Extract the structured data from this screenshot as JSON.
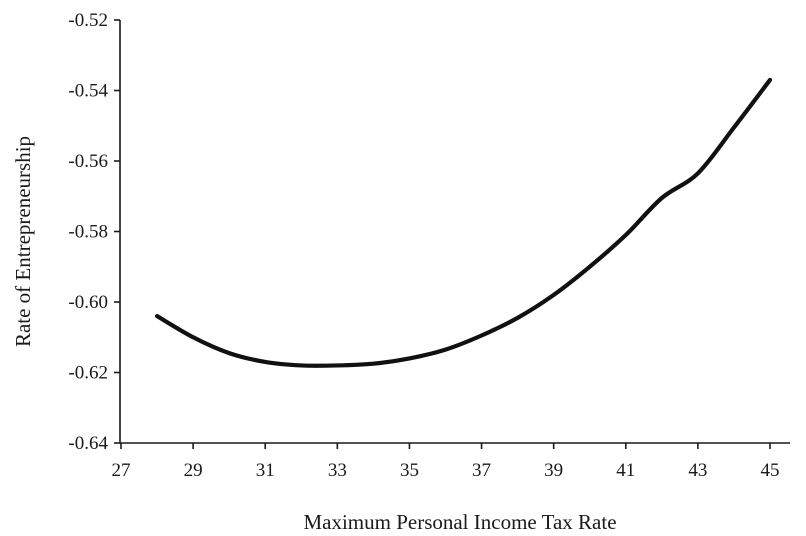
{
  "chart_data": {
    "type": "line",
    "title": "",
    "xlabel": "Maximum Personal Income Tax Rate",
    "ylabel": "Rate of Entrepreneurship",
    "xlim": [
      27,
      45
    ],
    "ylim": [
      -0.64,
      -0.52
    ],
    "x_ticks": [
      27,
      29,
      31,
      33,
      35,
      37,
      39,
      41,
      43,
      45
    ],
    "x_tick_labels": [
      "27",
      "29",
      "31",
      "33",
      "35",
      "37",
      "39",
      "41",
      "43",
      "45"
    ],
    "y_ticks": [
      -0.52,
      -0.54,
      -0.56,
      -0.58,
      -0.6,
      -0.62,
      -0.64
    ],
    "y_tick_labels": [
      "-0.52",
      "-0.54",
      "-0.56",
      "-0.58",
      "-0.60",
      "-0.62",
      "-0.64"
    ],
    "grid": false,
    "legend": "none",
    "series": [
      {
        "color": "#111111",
        "x": [
          28,
          29,
          30,
          31,
          32,
          33,
          34,
          35,
          36,
          37,
          38,
          39,
          40,
          41,
          42,
          43,
          44,
          45
        ],
        "y": [
          -0.604,
          -0.61,
          -0.6145,
          -0.617,
          -0.618,
          -0.618,
          -0.6175,
          -0.616,
          -0.6135,
          -0.6095,
          -0.6045,
          -0.598,
          -0.59,
          -0.581,
          -0.5705,
          -0.5635,
          -0.5505,
          -0.537
        ]
      }
    ]
  }
}
